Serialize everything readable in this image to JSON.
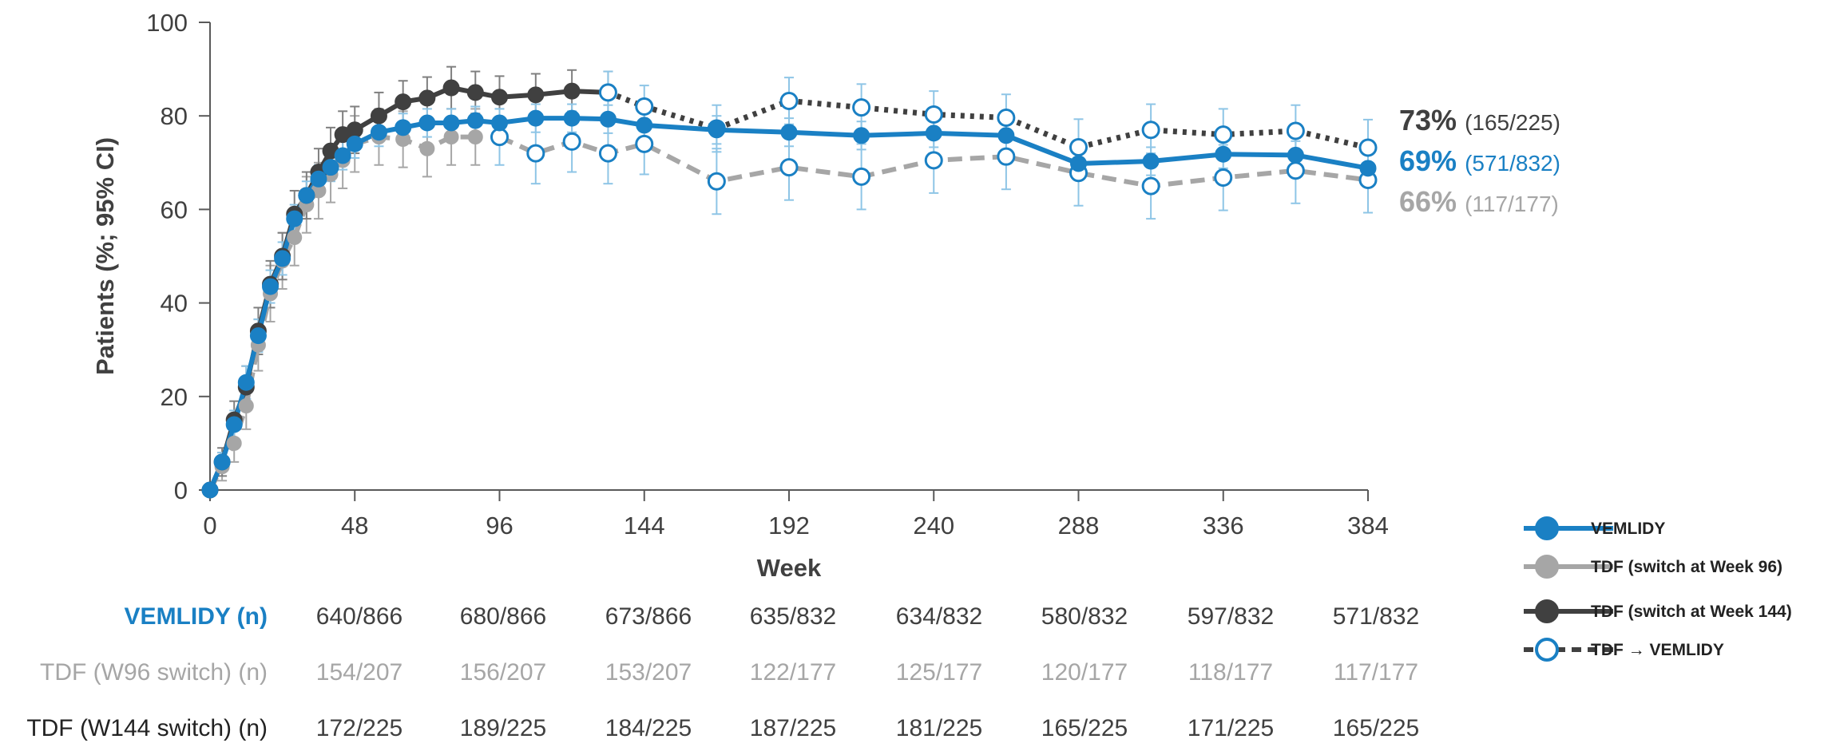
{
  "chart_data": {
    "type": "line",
    "ylabel": "Patients (%; 95% CI)",
    "xlabel": "Week",
    "ylim": [
      0,
      100
    ],
    "xlim": [
      0,
      384
    ],
    "y_ticks": [
      0,
      20,
      40,
      60,
      80,
      100
    ],
    "x_ticks": [
      0,
      48,
      96,
      144,
      192,
      240,
      288,
      336,
      384
    ],
    "colors": {
      "vemlidy": "#1a80c4",
      "tdf_w96": "#a6a6a6",
      "tdf_w144": "#404040",
      "tdf_to_vemlidy_marker": "#1a80c4",
      "error_bar_light": "#8ec5e6"
    },
    "series": [
      {
        "name": "VEMLIDY",
        "style": "solid",
        "x": [
          0,
          4,
          8,
          12,
          16,
          20,
          24,
          28,
          32,
          36,
          40,
          44,
          48,
          56,
          64,
          72,
          80,
          88,
          96,
          108,
          120,
          132,
          144,
          168,
          192,
          216,
          240,
          264,
          288,
          312,
          336,
          360,
          384
        ],
        "y": [
          0,
          6,
          14,
          23,
          33,
          43.5,
          49.5,
          58,
          63,
          66.5,
          69,
          71.5,
          74,
          76.5,
          77.5,
          78.5,
          78.5,
          79,
          78.5,
          79.5,
          79.5,
          79.3,
          78,
          77,
          76.5,
          75.8,
          76.3,
          75.8,
          69.8,
          70.3,
          71.8,
          71.6,
          68.8
        ],
        "err": [
          0,
          2,
          3,
          3.5,
          3.5,
          3.5,
          3.5,
          3,
          3,
          3,
          3,
          3,
          3,
          3,
          3,
          3,
          3,
          3,
          3,
          3,
          3,
          3,
          3,
          3,
          3,
          3,
          3,
          3,
          3,
          3,
          3,
          3,
          3
        ]
      },
      {
        "name": "TDF (switch at Week 96)",
        "style": "dashed",
        "x": [
          0,
          4,
          8,
          12,
          16,
          20,
          24,
          28,
          32,
          36,
          40,
          44,
          48,
          56,
          64,
          72,
          80,
          88
        ],
        "y": [
          0,
          5,
          10,
          18,
          31,
          42,
          49,
          54,
          61,
          64,
          67.5,
          70.5,
          74,
          75.5,
          75,
          73,
          75.5,
          75.5
        ],
        "err": [
          0,
          3,
          4,
          5,
          5.5,
          6,
          6,
          6,
          6,
          6,
          6,
          6,
          6,
          6,
          6,
          6,
          6,
          6
        ]
      },
      {
        "name": "TDF (switch at Week 144)",
        "style": "solid",
        "x": [
          0,
          4,
          8,
          12,
          16,
          20,
          24,
          28,
          32,
          36,
          40,
          44,
          48,
          56,
          64,
          72,
          80,
          88,
          96,
          108,
          120,
          132
        ],
        "y": [
          0,
          6,
          15,
          22,
          34,
          44,
          50,
          59,
          63,
          68,
          72.5,
          76,
          77,
          80,
          83,
          83.8,
          86,
          85,
          84,
          84.5,
          85.3,
          85
        ],
        "err": [
          0,
          3,
          4,
          4.5,
          5,
          5,
          5,
          5,
          5,
          5,
          5,
          5,
          5,
          5,
          4.5,
          4.5,
          4.5,
          4.5,
          4.5,
          4.5,
          4.5,
          4.5
        ]
      },
      {
        "name": "TDF → VEMLIDY (from W96 switch)",
        "style": "dashed",
        "x": [
          96,
          108,
          120,
          132,
          144,
          168,
          192,
          216,
          240,
          264,
          288,
          312,
          336,
          360,
          384
        ],
        "y": [
          75.5,
          72,
          74.5,
          72,
          74,
          66,
          69,
          67,
          70.5,
          71.3,
          67.8,
          65,
          66.8,
          68.3,
          66.3
        ],
        "err": [
          6,
          6.5,
          6.5,
          6.5,
          6.5,
          7,
          7,
          7,
          7,
          7,
          7,
          7,
          7,
          7,
          7
        ]
      },
      {
        "name": "TDF → VEMLIDY (from W144 switch)",
        "style": "dotted",
        "x": [
          132,
          144,
          168,
          192,
          216,
          240,
          264,
          288,
          312,
          336,
          360,
          384
        ],
        "y": [
          85,
          82,
          77.3,
          83.2,
          81.8,
          80.3,
          79.6,
          73.3,
          77,
          76,
          76.8,
          73.2
        ],
        "err": [
          4.5,
          4.5,
          5,
          5,
          5,
          5,
          5,
          6,
          5.5,
          5.5,
          5.5,
          6
        ]
      }
    ],
    "end_labels": [
      {
        "pct": "73%",
        "frac": "(165/225)",
        "color": "#404040"
      },
      {
        "pct": "69%",
        "frac": "(571/832)",
        "color": "#1a80c4"
      },
      {
        "pct": "66%",
        "frac": "(117/177)",
        "color": "#a6a6a6"
      }
    ],
    "legend": [
      {
        "label": "VEMLIDY"
      },
      {
        "label": "TDF (switch at Week 96)"
      },
      {
        "label": "TDF (switch at Week 144)"
      },
      {
        "label": "TDF → VEMLIDY"
      }
    ],
    "table": {
      "rows": [
        {
          "label": "VEMLIDY (n)",
          "color": "#1a80c4",
          "bold": true,
          "cells": [
            "640/866",
            "680/866",
            "673/866",
            "635/832",
            "634/832",
            "580/832",
            "597/832",
            "571/832"
          ]
        },
        {
          "label": "TDF (W96 switch) (n)",
          "color": "#a6a6a6",
          "bold": false,
          "cells": [
            "154/207",
            "156/207",
            "153/207",
            "122/177",
            "125/177",
            "120/177",
            "118/177",
            "117/177"
          ]
        },
        {
          "label": "TDF (W144 switch) (n)",
          "color": "#222222",
          "bold": false,
          "cells": [
            "172/225",
            "189/225",
            "184/225",
            "187/225",
            "181/225",
            "165/225",
            "171/225",
            "165/225"
          ]
        }
      ]
    }
  }
}
